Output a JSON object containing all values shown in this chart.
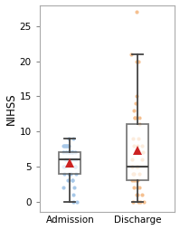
{
  "admission_data": [
    9,
    9,
    8,
    8,
    8,
    8,
    8,
    8,
    8,
    7,
    7,
    7,
    7,
    7,
    7,
    7,
    7,
    6,
    6,
    6,
    6,
    6,
    6,
    6,
    5,
    5,
    5,
    5,
    5,
    5,
    4,
    4,
    4,
    4,
    3,
    3,
    3,
    2,
    2,
    1,
    0,
    0
  ],
  "discharge_data": [
    27,
    21,
    20,
    20,
    15,
    14,
    13,
    12,
    12,
    12,
    11,
    9,
    9,
    8,
    8,
    8,
    7,
    7,
    6,
    6,
    5,
    5,
    5,
    5,
    4,
    4,
    4,
    3,
    3,
    3,
    3,
    2,
    2,
    2,
    1,
    1,
    1,
    0,
    0,
    0,
    0
  ],
  "admission_color": "#a8c8e8",
  "discharge_color": "#f5c090",
  "box_facecolor": "#ffffff",
  "box_edge_color": "#444444",
  "mean_color": "#cc2222",
  "ylabel": "NIHSS",
  "xlabel_labels": [
    "Admission",
    "Discharge"
  ],
  "ylim": [
    -1.5,
    28
  ],
  "yticks": [
    0,
    5,
    10,
    15,
    20,
    25
  ],
  "figsize": [
    1.99,
    2.54
  ],
  "dpi": 100,
  "background_color": "#ffffff"
}
